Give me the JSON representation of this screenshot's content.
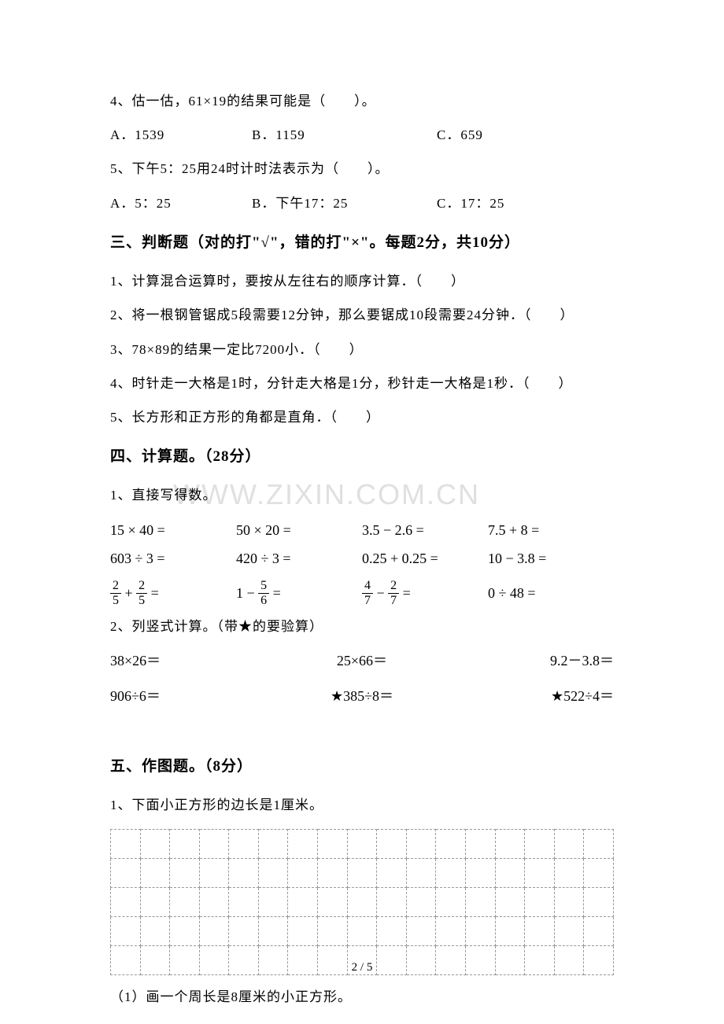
{
  "q4": {
    "text": "4、估一估，61×19的结果可能是（　　）。",
    "choices": {
      "a": "A．1539",
      "b": "B．1159",
      "c": "C．659"
    }
  },
  "q5": {
    "text": "5、下午5：25用24时计时法表示为（　　）。",
    "choices": {
      "a": "A．5：25",
      "b": "B．下午17：25",
      "c": "C．17：25"
    }
  },
  "section3": {
    "title": "三、判断题（对的打\"√\"，错的打\"×\"。每题2分，共10分）",
    "items": [
      "1、计算混合运算时，要按从左往右的顺序计算．（　　）",
      "2、将一根钢管锯成5段需要12分钟，那么要锯成10段需要24分钟．（　　）",
      "3、78×89的结果一定比7200小．（　　）",
      "4、时针走一大格是1时，分针走大格是1分，秒针走一大格是1秒．（　　）",
      "5、长方形和正方形的角都是直角．（　　）"
    ]
  },
  "section4": {
    "title": "四、计算题。（28分）",
    "sub1": "1、直接写得数。",
    "row1": {
      "a": "15 × 40 =",
      "b": "50 × 20 =",
      "c": "3.5 − 2.6 =",
      "d": "7.5 + 8 ="
    },
    "row2": {
      "a": "603 ÷ 3 =",
      "b": "420 ÷ 3 =",
      "c": "0.25 + 0.25 =",
      "d": "10 − 3.8 ="
    },
    "row3": {
      "a": {
        "type": "frac_add",
        "n1": "2",
        "d1": "5",
        "n2": "2",
        "d2": "5"
      },
      "b": {
        "type": "one_minus_frac",
        "n": "5",
        "d": "6"
      },
      "c": {
        "type": "frac_sub",
        "n1": "4",
        "d1": "7",
        "n2": "2",
        "d2": "7"
      },
      "d": "0 ÷ 48 ="
    },
    "sub2": "2、列竖式计算。（带★的要验算）",
    "vrow1": {
      "a": "38×26＝",
      "b": "25×66＝",
      "c": "9.2－3.8＝"
    },
    "vrow2": {
      "a": "906÷6＝",
      "b": "★385÷8＝",
      "c": "★522÷4＝"
    }
  },
  "section5": {
    "title": "五、作图题。（8分）",
    "sub1": "1、下面小正方形的边长是1厘米。",
    "grid": {
      "rows": 5,
      "cols": 17
    },
    "task1": "（1）画一个周长是8厘米的小正方形。"
  },
  "watermark": "WWW.ZIXIN.COM.CN",
  "page_num": "2 / 5"
}
